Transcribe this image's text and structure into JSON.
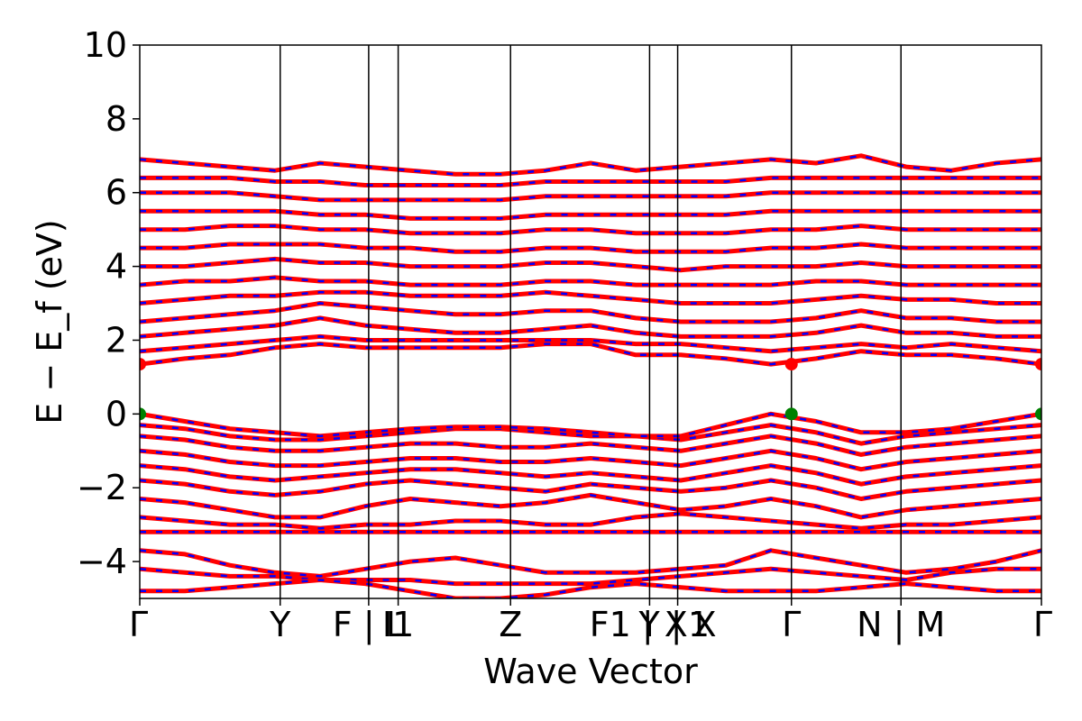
{
  "chart_data": {
    "type": "line",
    "title": "",
    "xlabel": "Wave Vector",
    "ylabel": "E − E_f (eV)",
    "ylim": [
      -5,
      10
    ],
    "yticks": [
      "10",
      "8",
      "6",
      "4",
      "2",
      "0",
      "−2",
      "−4"
    ],
    "ytick_values": [
      10,
      8,
      6,
      4,
      2,
      0,
      -2,
      -4
    ],
    "kpath_labels": [
      "Γ",
      "Y",
      "F | L",
      "I1",
      "Z",
      "F1 | X1",
      "Y | X",
      "Γ",
      "N | M",
      "Γ"
    ],
    "kpath_positions": [
      0,
      1,
      1.63,
      1.84,
      2.64,
      3.63,
      3.83,
      4.64,
      5.42,
      6.42
    ],
    "grid": false,
    "legend": "none",
    "colors": {
      "spin_up": "#ff0000",
      "spin_down": "#0000ff",
      "vbm_marker": "#008000",
      "cbm_marker": "#ff0000"
    },
    "band_edges": {
      "vbm": 0.0,
      "cbm": 1.35
    },
    "series": [
      {
        "values": [
          -3.7,
          -3.8,
          -4.1,
          -4.3,
          -4.4,
          -4.2,
          -4.0,
          -3.9,
          -4.1,
          -4.3,
          -4.3,
          -4.3,
          -4.2,
          -4.1,
          -3.7,
          -3.9,
          -4.1,
          -4.3,
          -4.2,
          -4.0,
          -3.7
        ]
      },
      {
        "values": [
          -4.2,
          -4.3,
          -4.4,
          -4.4,
          -4.5,
          -4.5,
          -4.5,
          -4.6,
          -4.6,
          -4.6,
          -4.6,
          -4.5,
          -4.4,
          -4.3,
          -4.2,
          -4.3,
          -4.4,
          -4.5,
          -4.3,
          -4.2,
          -4.2
        ]
      },
      {
        "values": [
          -4.8,
          -4.8,
          -4.7,
          -4.6,
          -4.5,
          -4.6,
          -4.8,
          -5.0,
          -5.0,
          -4.9,
          -4.7,
          -4.6,
          -4.7,
          -4.8,
          -4.8,
          -4.8,
          -4.7,
          -4.6,
          -4.7,
          -4.8,
          -4.8
        ]
      },
      {
        "values": [
          -3.2,
          -3.2,
          -3.2,
          -3.2,
          -3.2,
          -3.2,
          -3.2,
          -3.2,
          -3.2,
          -3.2,
          -3.2,
          -3.2,
          -3.2,
          -3.2,
          -3.2,
          -3.2,
          -3.2,
          -3.2,
          -3.2,
          -3.2,
          -3.2
        ]
      },
      {
        "values": [
          -2.8,
          -2.9,
          -3.0,
          -3.0,
          -3.1,
          -3.0,
          -3.0,
          -2.9,
          -2.9,
          -3.0,
          -3.0,
          -2.8,
          -2.7,
          -2.8,
          -2.9,
          -3.0,
          -3.1,
          -3.0,
          -3.0,
          -2.9,
          -2.8
        ]
      },
      {
        "values": [
          -2.3,
          -2.4,
          -2.6,
          -2.8,
          -2.8,
          -2.5,
          -2.3,
          -2.4,
          -2.5,
          -2.4,
          -2.2,
          -2.4,
          -2.6,
          -2.5,
          -2.3,
          -2.5,
          -2.8,
          -2.6,
          -2.5,
          -2.4,
          -2.3
        ]
      },
      {
        "values": [
          -1.8,
          -1.9,
          -2.1,
          -2.2,
          -2.1,
          -1.9,
          -1.8,
          -1.9,
          -2.0,
          -2.1,
          -1.9,
          -2.0,
          -2.1,
          -2.0,
          -1.8,
          -2.0,
          -2.3,
          -2.1,
          -2.0,
          -1.9,
          -1.8
        ]
      },
      {
        "values": [
          -1.4,
          -1.5,
          -1.7,
          -1.8,
          -1.7,
          -1.6,
          -1.5,
          -1.5,
          -1.6,
          -1.7,
          -1.6,
          -1.7,
          -1.8,
          -1.6,
          -1.4,
          -1.6,
          -1.9,
          -1.7,
          -1.6,
          -1.5,
          -1.4
        ]
      },
      {
        "values": [
          -1.0,
          -1.1,
          -1.3,
          -1.4,
          -1.4,
          -1.3,
          -1.2,
          -1.2,
          -1.3,
          -1.3,
          -1.2,
          -1.3,
          -1.4,
          -1.2,
          -1.0,
          -1.2,
          -1.5,
          -1.3,
          -1.2,
          -1.1,
          -1.0
        ]
      },
      {
        "values": [
          -0.6,
          -0.7,
          -0.9,
          -1.0,
          -1.0,
          -0.9,
          -0.8,
          -0.8,
          -0.9,
          -0.9,
          -0.8,
          -0.9,
          -1.0,
          -0.8,
          -0.6,
          -0.8,
          -1.1,
          -0.9,
          -0.8,
          -0.7,
          -0.6
        ]
      },
      {
        "values": [
          -0.3,
          -0.4,
          -0.6,
          -0.7,
          -0.7,
          -0.6,
          -0.5,
          -0.4,
          -0.4,
          -0.5,
          -0.6,
          -0.6,
          -0.7,
          -0.5,
          -0.3,
          -0.5,
          -0.8,
          -0.6,
          -0.5,
          -0.4,
          -0.3
        ]
      },
      {
        "values": [
          0.0,
          -0.2,
          -0.4,
          -0.5,
          -0.6,
          -0.5,
          -0.4,
          -0.35,
          -0.35,
          -0.4,
          -0.5,
          -0.6,
          -0.6,
          -0.3,
          0.0,
          -0.2,
          -0.5,
          -0.5,
          -0.4,
          -0.2,
          0.0
        ]
      },
      {
        "values": [
          1.35,
          1.5,
          1.6,
          1.8,
          1.9,
          1.8,
          1.8,
          1.8,
          1.8,
          1.9,
          1.9,
          1.6,
          1.6,
          1.5,
          1.35,
          1.5,
          1.7,
          1.6,
          1.6,
          1.5,
          1.35
        ]
      },
      {
        "values": [
          1.7,
          1.8,
          1.9,
          2.0,
          2.1,
          2.0,
          2.0,
          2.0,
          2.0,
          2.0,
          2.0,
          1.9,
          1.9,
          1.8,
          1.7,
          1.8,
          1.9,
          1.8,
          1.9,
          1.8,
          1.7
        ]
      },
      {
        "values": [
          2.1,
          2.2,
          2.3,
          2.4,
          2.6,
          2.4,
          2.3,
          2.2,
          2.2,
          2.3,
          2.4,
          2.2,
          2.1,
          2.1,
          2.1,
          2.2,
          2.4,
          2.2,
          2.2,
          2.1,
          2.1
        ]
      },
      {
        "values": [
          2.5,
          2.6,
          2.7,
          2.8,
          3.0,
          2.9,
          2.8,
          2.7,
          2.7,
          2.8,
          2.8,
          2.6,
          2.5,
          2.5,
          2.5,
          2.6,
          2.8,
          2.6,
          2.6,
          2.5,
          2.5
        ]
      },
      {
        "values": [
          3.0,
          3.1,
          3.2,
          3.2,
          3.3,
          3.3,
          3.2,
          3.2,
          3.2,
          3.3,
          3.2,
          3.1,
          3.0,
          3.0,
          3.0,
          3.1,
          3.2,
          3.1,
          3.1,
          3.0,
          3.0
        ]
      },
      {
        "values": [
          3.5,
          3.6,
          3.6,
          3.7,
          3.6,
          3.6,
          3.5,
          3.5,
          3.5,
          3.6,
          3.6,
          3.5,
          3.5,
          3.5,
          3.5,
          3.6,
          3.6,
          3.5,
          3.5,
          3.5,
          3.5
        ]
      },
      {
        "values": [
          4.0,
          4.0,
          4.1,
          4.2,
          4.1,
          4.1,
          4.0,
          4.0,
          4.0,
          4.1,
          4.1,
          4.0,
          3.9,
          4.0,
          4.0,
          4.0,
          4.1,
          4.0,
          4.0,
          4.0,
          4.0
        ]
      },
      {
        "values": [
          4.5,
          4.5,
          4.6,
          4.6,
          4.6,
          4.5,
          4.5,
          4.4,
          4.4,
          4.5,
          4.5,
          4.4,
          4.4,
          4.4,
          4.5,
          4.5,
          4.6,
          4.5,
          4.5,
          4.5,
          4.5
        ]
      },
      {
        "values": [
          5.0,
          5.0,
          5.1,
          5.1,
          5.0,
          5.0,
          4.9,
          4.9,
          4.9,
          5.0,
          5.0,
          4.9,
          4.9,
          4.9,
          5.0,
          5.0,
          5.1,
          5.0,
          5.0,
          5.0,
          5.0
        ]
      },
      {
        "values": [
          5.5,
          5.5,
          5.5,
          5.5,
          5.4,
          5.4,
          5.3,
          5.3,
          5.3,
          5.4,
          5.4,
          5.4,
          5.4,
          5.4,
          5.5,
          5.5,
          5.5,
          5.5,
          5.5,
          5.5,
          5.5
        ]
      },
      {
        "values": [
          6.0,
          6.0,
          6.0,
          5.9,
          5.8,
          5.8,
          5.8,
          5.8,
          5.8,
          5.9,
          5.9,
          5.9,
          5.9,
          5.9,
          6.0,
          6.0,
          6.0,
          6.0,
          6.0,
          6.0,
          6.0
        ]
      },
      {
        "values": [
          6.4,
          6.4,
          6.4,
          6.3,
          6.3,
          6.2,
          6.2,
          6.2,
          6.2,
          6.3,
          6.3,
          6.3,
          6.3,
          6.3,
          6.4,
          6.4,
          6.4,
          6.4,
          6.4,
          6.4,
          6.4
        ]
      },
      {
        "values": [
          6.9,
          6.8,
          6.7,
          6.6,
          6.8,
          6.7,
          6.6,
          6.5,
          6.5,
          6.6,
          6.8,
          6.6,
          6.7,
          6.8,
          6.9,
          6.8,
          7.0,
          6.7,
          6.6,
          6.8,
          6.9
        ]
      }
    ]
  }
}
